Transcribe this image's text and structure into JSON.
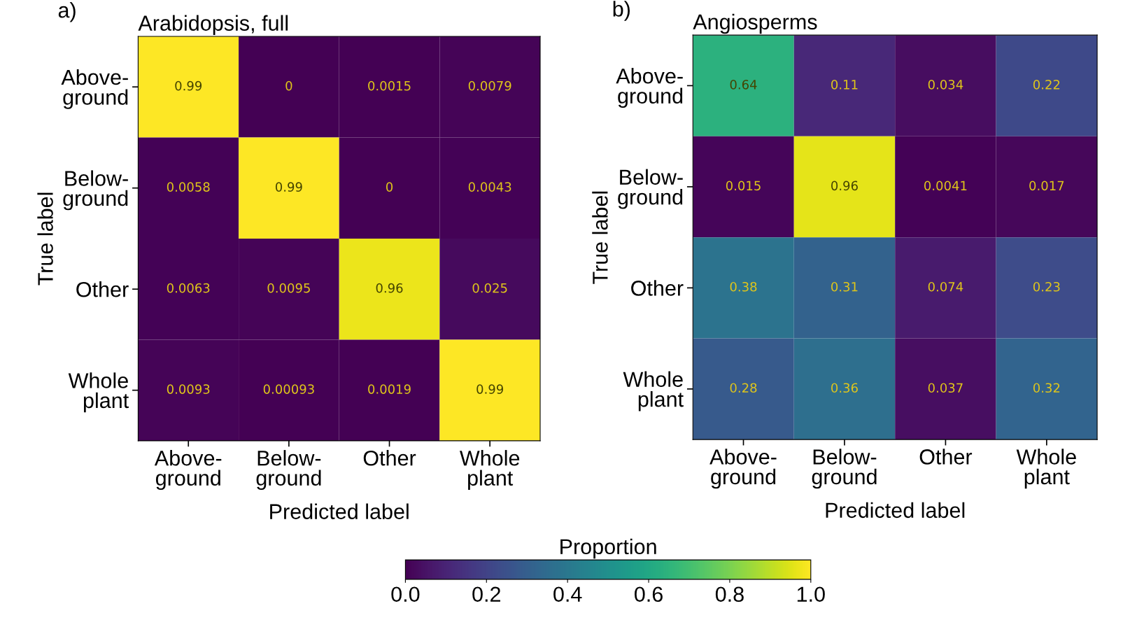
{
  "chart_data": [
    {
      "type": "heatmap",
      "title": "Arabidopsis, full",
      "xlabel": "Predicted label",
      "ylabel": "True label",
      "annotations": [
        "a)"
      ],
      "categories": [
        "Above-\nground",
        "Below-\nground",
        "Other",
        "Whole\nplant"
      ],
      "y_categories": [
        "Above-\nground",
        "Below-\nground",
        "Other",
        "Whole\nplant"
      ],
      "cells": [
        [
          0.99,
          0,
          0.0015,
          0.0079
        ],
        [
          0.0058,
          0.99,
          0,
          0.0043
        ],
        [
          0.0063,
          0.0095,
          0.96,
          0.025
        ],
        [
          0.0093,
          0.00093,
          0.0019,
          0.99
        ]
      ],
      "data_labels": true
    },
    {
      "type": "heatmap",
      "title": "Angiosperms",
      "xlabel": "Predicted label",
      "ylabel": "True label",
      "annotations": [
        "b)"
      ],
      "categories": [
        "Above-\nground",
        "Below-\nground",
        "Other",
        "Whole\nplant"
      ],
      "y_categories": [
        "Above-\nground",
        "Below-\nground",
        "Other",
        "Whole\nplant"
      ],
      "cells": [
        [
          0.64,
          0.11,
          0.034,
          0.22
        ],
        [
          0.015,
          0.96,
          0.0041,
          0.017
        ],
        [
          0.38,
          0.31,
          0.074,
          0.23
        ],
        [
          0.28,
          0.36,
          0.037,
          0.32
        ]
      ],
      "clim": [
        0,
        1
      ],
      "clabel": "Proportion",
      "cticks": [
        {
          "value": 0,
          "label": "0.0"
        },
        {
          "value": 0.2,
          "label": "0.2"
        },
        {
          "value": 0.4,
          "label": "0.4"
        },
        {
          "value": 0.6,
          "label": "0.6"
        },
        {
          "value": 0.8,
          "label": "0.8"
        },
        {
          "value": 1,
          "label": "1.0"
        }
      ],
      "data_labels": true
    }
  ]
}
